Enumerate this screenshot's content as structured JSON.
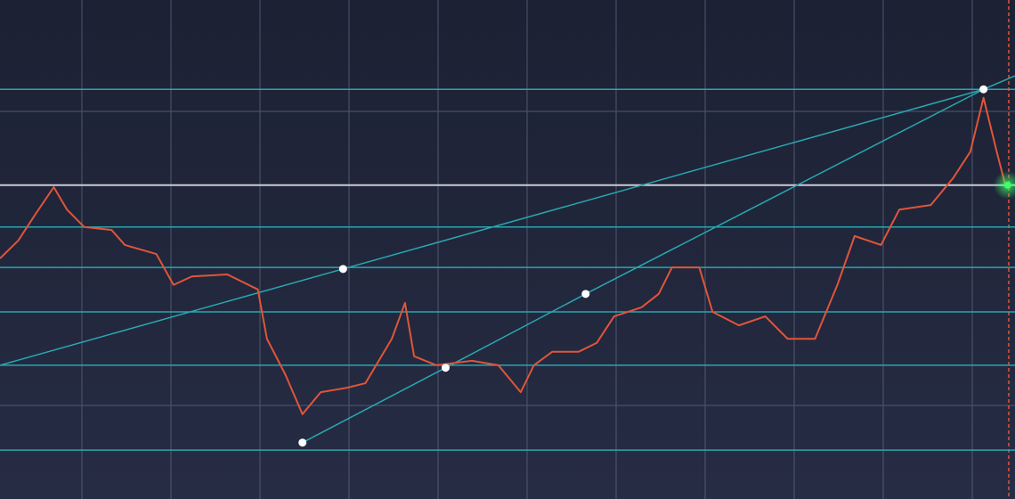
{
  "chart_data": {
    "type": "line",
    "xlim": [
      0,
      100
    ],
    "ylim": [
      0,
      100
    ],
    "series": [
      {
        "color": "#e0553a",
        "x": [
          0,
          1.8,
          3.5,
          5.3,
          6.6,
          8.3,
          11,
          12.3,
          15.4,
          17.1,
          18.9,
          22.4,
          25.4,
          26.3,
          28.1,
          29.8,
          31.6,
          34.2,
          36,
          38.6,
          39.9,
          40.8,
          43,
          46.5,
          49.1,
          51.3,
          52.6,
          54.4,
          57,
          58.8,
          60.5,
          63.2,
          64.9,
          66.2,
          68.9,
          70.2,
          72.8,
          75.4,
          77.6,
          80.3,
          82.5,
          84.2,
          86.8,
          88.6,
          91.7,
          93.9,
          95.6,
          96.9,
          98.2,
          99.1
        ],
        "values": [
          48.2,
          51.8,
          57.1,
          62.5,
          58,
          54.5,
          53.9,
          50.9,
          49.1,
          42.9,
          44.6,
          45,
          42,
          32.1,
          25,
          17,
          21.4,
          22.3,
          23.2,
          32.1,
          39.3,
          28.6,
          26.8,
          27.7,
          26.8,
          21.4,
          26.8,
          29.5,
          29.5,
          31.3,
          36.6,
          38.4,
          41.1,
          46.4,
          46.4,
          37.5,
          34.8,
          36.6,
          32.1,
          32.1,
          42.9,
          52.7,
          50.9,
          58,
          58.9,
          64.3,
          69.6,
          80.4,
          69.6,
          62.5
        ]
      }
    ],
    "levels": [
      82.1,
      54.5,
      46.4,
      37.5,
      26.8,
      9.8
    ],
    "level_color": "#2aa6b0",
    "price_level": 62.9,
    "trend_lines": [
      {
        "x": [
          0,
          33.8,
          96.9,
          100
        ],
        "values": [
          26.8,
          46.1,
          82.1,
          84.8
        ]
      },
      {
        "x": [
          29.8,
          43.9,
          57.7,
          96.9
        ],
        "values": [
          11.3,
          26.3,
          41.1,
          82.1
        ]
      }
    ],
    "anchors": {
      "x": [
        33.8,
        96.9,
        29.8,
        43.9,
        57.7
      ],
      "values": [
        46.1,
        82.1,
        11.3,
        26.3,
        41.1
      ]
    }
  }
}
